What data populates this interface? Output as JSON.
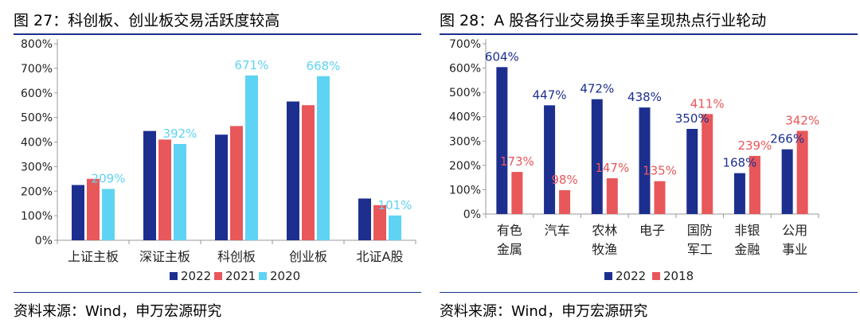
{
  "left": {
    "title": "图 27：科创板、创业板交易活跃度较高",
    "source": "资料来源：Wind，申万宏源研究"
  },
  "right": {
    "title": "图 28：A 股各行业交易换手率呈现热点行业轮动",
    "source": "资料来源：Wind，申万宏源研究"
  },
  "colors": {
    "navy": "#1c2f8f",
    "red": "#e8575a",
    "cyan": "#5fd3f3",
    "rule": "#1f2f8f"
  },
  "chart_data": [
    {
      "type": "bar",
      "categories": [
        "上证主板",
        "深证主板",
        "科创板",
        "创业板",
        "北证A股"
      ],
      "series": [
        {
          "name": "2022",
          "values": [
            225,
            445,
            430,
            565,
            170
          ]
        },
        {
          "name": "2021",
          "values": [
            250,
            410,
            465,
            550,
            143
          ]
        },
        {
          "name": "2020",
          "values": [
            209,
            392,
            671,
            668,
            101
          ]
        }
      ],
      "ylim": [
        0,
        800
      ],
      "yticks": [
        "0%",
        "100%",
        "200%",
        "300%",
        "400%",
        "500%",
        "600%",
        "700%",
        "800%"
      ],
      "data_labels": [
        {
          "series": 2,
          "index": 0,
          "text": "209%"
        },
        {
          "series": 2,
          "index": 1,
          "text": "392%"
        },
        {
          "series": 2,
          "index": 2,
          "text": "671%"
        },
        {
          "series": 2,
          "index": 3,
          "text": "668%"
        },
        {
          "series": 2,
          "index": 4,
          "text": "101%"
        }
      ],
      "legend": [
        "2022",
        "2021",
        "2020"
      ],
      "legend_position": "bottom"
    },
    {
      "type": "bar",
      "categories": [
        [
          "有色",
          "金属"
        ],
        [
          "汽车"
        ],
        [
          "农林",
          "牧渔"
        ],
        [
          "电子"
        ],
        [
          "国防",
          "军工"
        ],
        [
          "非银",
          "金融"
        ],
        [
          "公用",
          "事业"
        ]
      ],
      "series": [
        {
          "name": "2022",
          "values": [
            604,
            447,
            472,
            438,
            350,
            168,
            266
          ]
        },
        {
          "name": "2018",
          "values": [
            173,
            98,
            147,
            135,
            411,
            239,
            342
          ]
        }
      ],
      "ylim": [
        0,
        700
      ],
      "yticks": [
        "0%",
        "100%",
        "200%",
        "300%",
        "400%",
        "500%",
        "600%",
        "700%"
      ],
      "data_labels": [
        {
          "series": 0,
          "index": 0,
          "text": "604%"
        },
        {
          "series": 0,
          "index": 1,
          "text": "447%"
        },
        {
          "series": 0,
          "index": 2,
          "text": "472%"
        },
        {
          "series": 0,
          "index": 3,
          "text": "438%"
        },
        {
          "series": 0,
          "index": 4,
          "text": "350%"
        },
        {
          "series": 0,
          "index": 5,
          "text": "168%"
        },
        {
          "series": 0,
          "index": 6,
          "text": "266%"
        },
        {
          "series": 1,
          "index": 0,
          "text": "173%"
        },
        {
          "series": 1,
          "index": 1,
          "text": "98%"
        },
        {
          "series": 1,
          "index": 2,
          "text": "147%"
        },
        {
          "series": 1,
          "index": 3,
          "text": "135%"
        },
        {
          "series": 1,
          "index": 4,
          "text": "411%"
        },
        {
          "series": 1,
          "index": 5,
          "text": "239%"
        },
        {
          "series": 1,
          "index": 6,
          "text": "342%"
        }
      ],
      "legend": [
        "2022",
        "2018"
      ],
      "legend_position": "bottom"
    }
  ]
}
